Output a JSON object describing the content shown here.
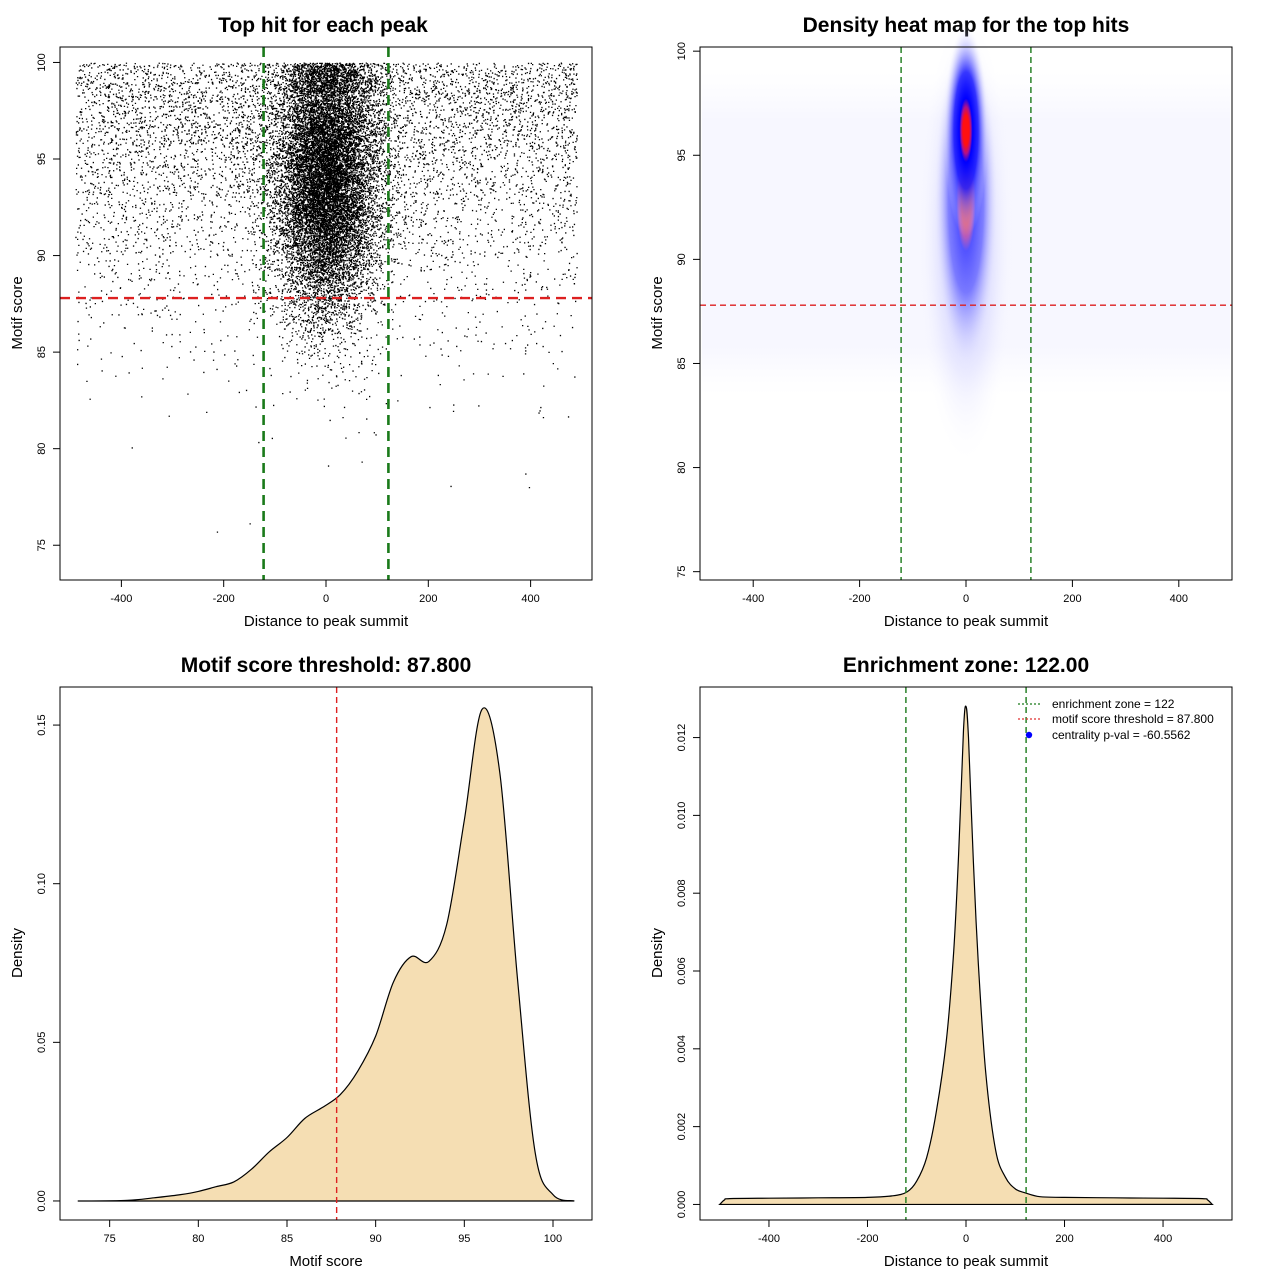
{
  "chart_data": [
    {
      "id": "scatter",
      "type": "scatter",
      "title": "Top hit for each peak",
      "xlabel": "Distance to peak summit",
      "ylabel": "Motif score",
      "xlim": [
        -520,
        520
      ],
      "ylim": [
        73.2,
        100.8
      ],
      "xticks": [
        -400,
        -200,
        0,
        200,
        400
      ],
      "yticks": [
        75,
        80,
        85,
        90,
        95,
        100
      ],
      "vlines": [
        -122,
        122
      ],
      "hline": 87.8,
      "background_points": {
        "n": 6500,
        "x_range": [
          -490,
          490
        ],
        "y_range": [
          74,
          100
        ]
      },
      "central_points": {
        "n": 14000,
        "x_center": 0,
        "x_sd": 50,
        "y_center": 94,
        "y_sd": 3.6,
        "y_max": 100
      }
    },
    {
      "id": "heatmap",
      "type": "heatmap",
      "title": "Density heat map for the top hits",
      "xlabel": "Distance to peak summit",
      "ylabel": "Motif score",
      "xlim": [
        -500,
        500
      ],
      "ylim": [
        74.6,
        100.2
      ],
      "xticks": [
        -400,
        -200,
        0,
        200,
        400
      ],
      "yticks": [
        75,
        80,
        85,
        90,
        95,
        100
      ],
      "vlines": [
        -122,
        122
      ],
      "hline": 87.8,
      "peak": {
        "x": 0,
        "y": 96.2
      }
    },
    {
      "id": "score-density",
      "type": "area",
      "title": "Motif score threshold: 87.800",
      "xlabel": "Motif score",
      "ylabel": "Density",
      "xlim": [
        72.2,
        102.2
      ],
      "ylim": [
        -0.006,
        0.162
      ],
      "xticks": [
        75,
        80,
        85,
        90,
        95,
        100
      ],
      "yticks": [
        0.0,
        0.05,
        0.1,
        0.15
      ],
      "ytick_labels": [
        "0.00",
        "0.05",
        "0.10",
        "0.15"
      ],
      "vline": 87.8,
      "x": [
        73.2,
        76,
        77.5,
        79,
        80,
        81,
        82,
        83,
        84,
        85,
        86,
        87,
        88,
        89,
        90,
        91,
        92,
        93,
        94,
        95,
        96,
        97,
        98,
        99,
        100,
        101.2
      ],
      "y": [
        0.0,
        0.0002,
        0.001,
        0.002,
        0.003,
        0.0045,
        0.006,
        0.01,
        0.0155,
        0.02,
        0.026,
        0.0295,
        0.0335,
        0.041,
        0.052,
        0.069,
        0.077,
        0.0755,
        0.087,
        0.12,
        0.155,
        0.135,
        0.07,
        0.015,
        0.002,
        0.0
      ]
    },
    {
      "id": "distance-density",
      "type": "area",
      "title": "Enrichment zone: 122.00",
      "xlabel": "Distance to peak summit",
      "ylabel": "Density",
      "xlim": [
        -540,
        540
      ],
      "ylim": [
        -0.0004,
        0.0133
      ],
      "xticks": [
        -400,
        -200,
        0,
        200,
        400
      ],
      "yticks": [
        0,
        0.002,
        0.004,
        0.006,
        0.008,
        0.01,
        0.012
      ],
      "ytick_labels": [
        "0.000",
        "0.002",
        "0.004",
        "0.006",
        "0.008",
        "0.010",
        "0.012"
      ],
      "vlines": [
        -122,
        122
      ],
      "x": [
        -500,
        -490,
        -480,
        -400,
        -300,
        -200,
        -150,
        -120,
        -100,
        -80,
        -60,
        -40,
        -25,
        -15,
        -5,
        0,
        5,
        15,
        25,
        40,
        60,
        80,
        100,
        120,
        150,
        200,
        300,
        400,
        480,
        490,
        500
      ],
      "y": [
        0.0,
        0.00012,
        0.00015,
        0.00016,
        0.00017,
        0.00018,
        0.00022,
        0.00032,
        0.0006,
        0.0012,
        0.0024,
        0.0042,
        0.0065,
        0.009,
        0.0122,
        0.0128,
        0.012,
        0.0088,
        0.0062,
        0.0034,
        0.0014,
        0.0007,
        0.0004,
        0.0003,
        0.0002,
        0.00018,
        0.00017,
        0.00016,
        0.00015,
        0.00012,
        0.0
      ],
      "legend": {
        "position": "top-right",
        "entries": [
          {
            "label": "enrichment zone = 122",
            "color": "#1a7a1a",
            "style": "dotted-line"
          },
          {
            "label": "motif score threshold = 87.800",
            "color": "#e03030",
            "style": "dotted-line"
          },
          {
            "label": "centrality p-val = -60.5562",
            "color": "#0000ff",
            "style": "point"
          }
        ]
      }
    }
  ],
  "colors": {
    "threshold": "#dd2020",
    "zone": "#1a7a1a",
    "fill": "#f5deb3",
    "points": "#000000",
    "heat_low": "#ffffff",
    "heat_mid": "#0000ff",
    "heat_high": "#ff0000",
    "legend_point": "#0000ff"
  }
}
